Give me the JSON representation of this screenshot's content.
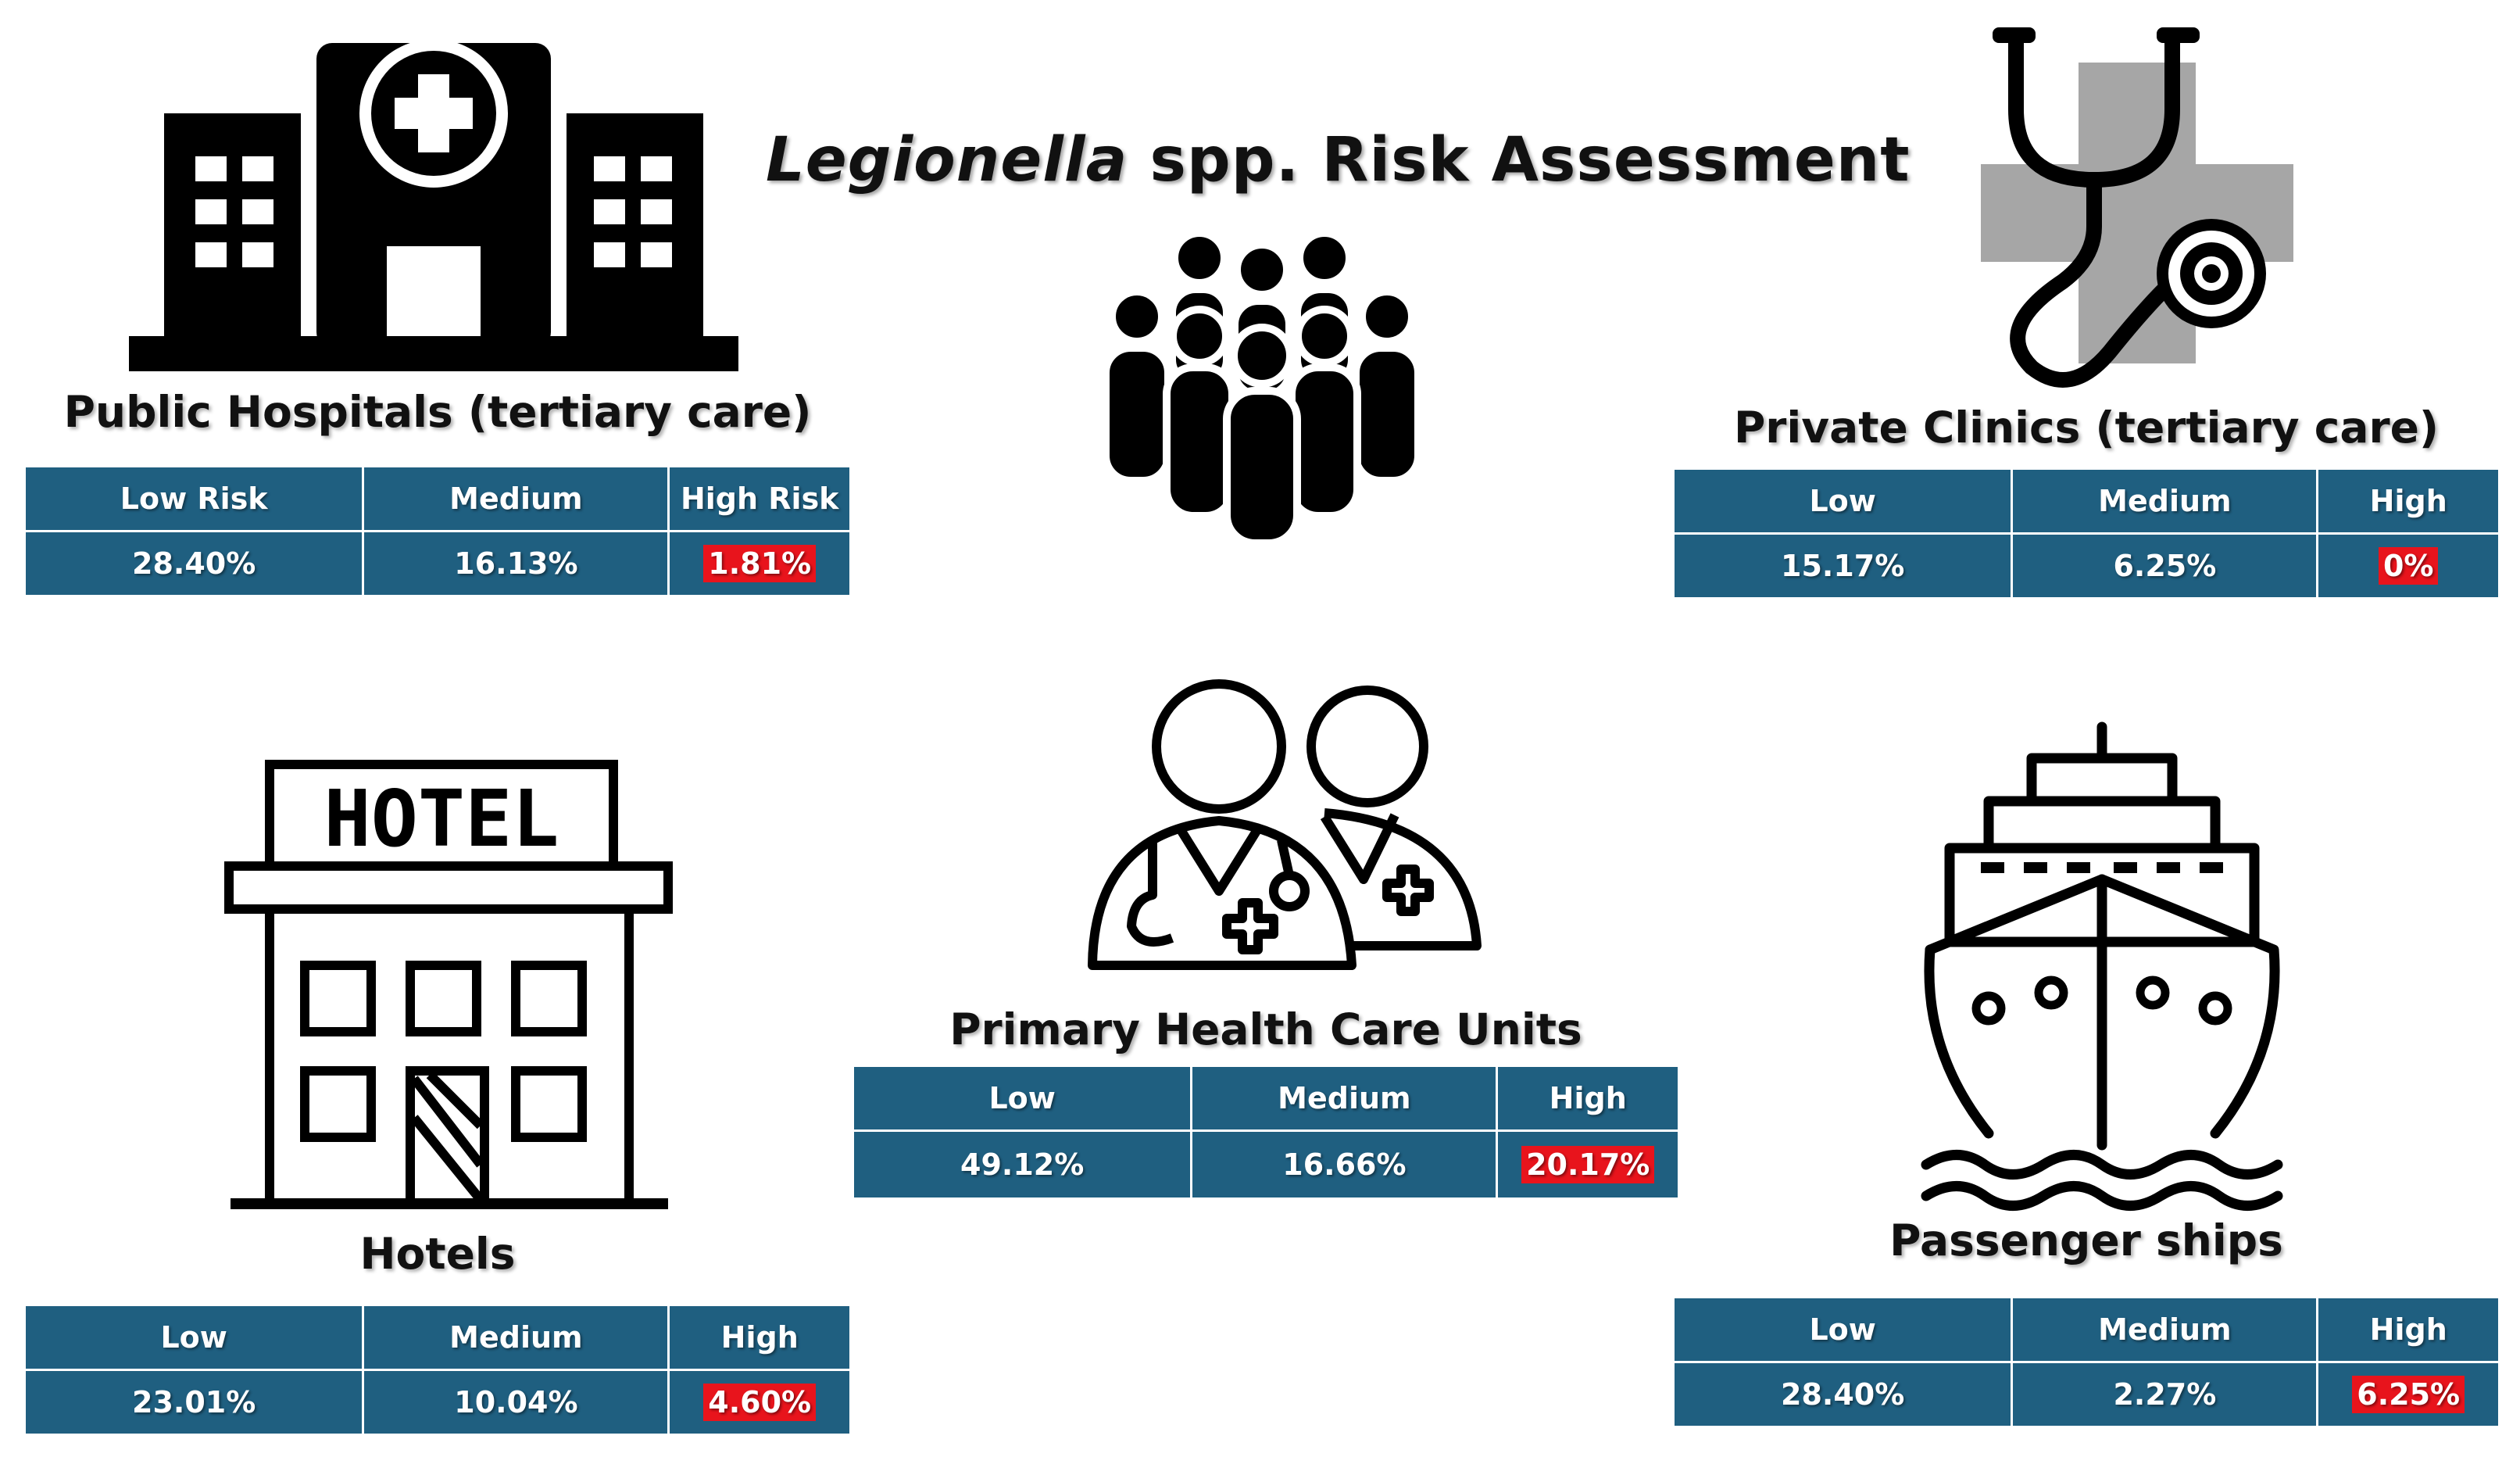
{
  "title": {
    "italic": "Legionella",
    "rest": " spp. Risk Assessment"
  },
  "accent_color": "#1f5f80",
  "highlight_color": "#e8141c",
  "icons": [
    "hospital-icon",
    "crowd-icon",
    "stethoscope-cross-icon",
    "hotel-icon",
    "doctors-icon",
    "ship-icon"
  ],
  "hotel_sign": "HOTEL",
  "panels": {
    "public_hospitals": {
      "label": "Public Hospitals (tertiary care)",
      "headers": [
        "Low Risk",
        "Medium",
        "High Risk"
      ],
      "values": [
        "28.40%",
        "16.13%",
        "1.81%"
      ]
    },
    "private_clinics": {
      "label": "Private Clinics (tertiary care)",
      "headers": [
        "Low",
        "Medium",
        "High"
      ],
      "values": [
        "15.17%",
        "6.25%",
        "0%"
      ]
    },
    "primary_health": {
      "label": "Primary Health Care Units",
      "headers": [
        "Low",
        "Medium",
        "High"
      ],
      "values": [
        "49.12%",
        "16.66%",
        "20.17%"
      ]
    },
    "hotels": {
      "label": "Hotels",
      "headers": [
        "Low",
        "Medium",
        "High"
      ],
      "values": [
        "23.01%",
        "10.04%",
        "4.60%"
      ]
    },
    "passenger_ships": {
      "label": "Passenger ships",
      "headers": [
        "Low",
        "Medium",
        "High"
      ],
      "values": [
        "28.40%",
        "2.27%",
        "6.25%"
      ]
    }
  }
}
